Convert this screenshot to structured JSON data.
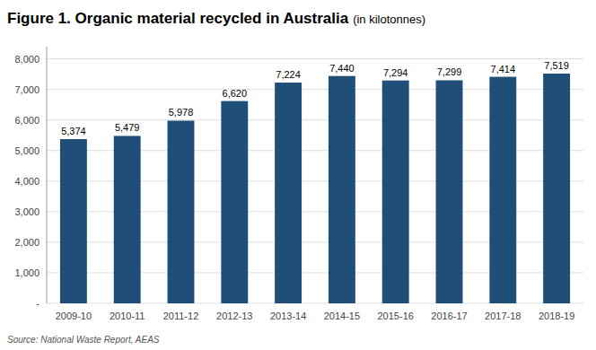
{
  "chart_data": {
    "type": "bar",
    "title": "Figure 1. Organic material recycled in Australia",
    "subtitle": "(in kilotonnes)",
    "source": "Source: National Waste Report, AEAS",
    "categories": [
      "2009-10",
      "2010-11",
      "2011-12",
      "2012-13",
      "2013-14",
      "2014-15",
      "2015-16",
      "2016-17",
      "2017-18",
      "2018-19"
    ],
    "values": [
      5374,
      5479,
      5978,
      6620,
      7224,
      7440,
      7294,
      7299,
      7414,
      7519
    ],
    "value_labels": [
      "5,374",
      "5,479",
      "5,978",
      "6,620",
      "7,224",
      "7,440",
      "7,294",
      "7,299",
      "7,414",
      "7,519"
    ],
    "data_labels": true,
    "color": "#1F4E79",
    "ylim": [
      0,
      8400
    ],
    "yticks": [
      {
        "value": 0,
        "label": "-"
      },
      {
        "value": 1000,
        "label": "1,000"
      },
      {
        "value": 2000,
        "label": "2,000"
      },
      {
        "value": 3000,
        "label": "3,000"
      },
      {
        "value": 4000,
        "label": "4,000"
      },
      {
        "value": 5000,
        "label": "5,000"
      },
      {
        "value": 6000,
        "label": "6,000"
      },
      {
        "value": 7000,
        "label": "7,000"
      },
      {
        "value": 8000,
        "label": "8,000"
      }
    ],
    "grid": true
  }
}
